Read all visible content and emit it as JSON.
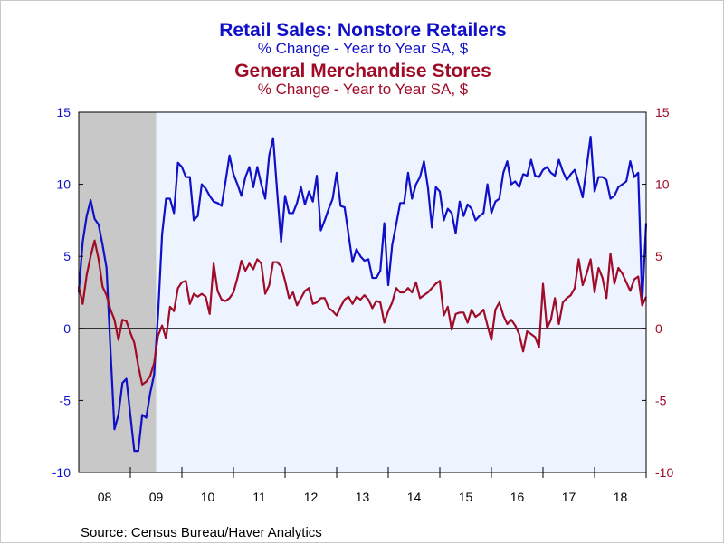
{
  "colors": {
    "series1": "#1010c8",
    "series2": "#a00c28",
    "recession": "#c8c8c8",
    "plot_background": "#eef4ff"
  },
  "titles": {
    "series1_title": "Retail Sales: Nonstore Retailers",
    "series1_subtitle": "% Change - Year to Year    SA, $",
    "series2_title": "General Merchandise Stores",
    "series2_subtitle": "% Change - Year to Year    SA, $"
  },
  "source": "Source:  Census Bureau/Haver Analytics",
  "chart_data": {
    "type": "line",
    "x_tick_labels": [
      "08",
      "09",
      "10",
      "11",
      "12",
      "13",
      "14",
      "15",
      "16",
      "17",
      "18"
    ],
    "y_tick_labels_left": [
      "15",
      "10",
      "5",
      "0",
      "-5",
      "-10"
    ],
    "y_tick_labels_right": [
      "15",
      "10",
      "5",
      "0",
      "-5",
      "-10"
    ],
    "ylim": [
      -10,
      15
    ],
    "xlim": [
      2008.0,
      2019.0
    ],
    "zero_line": true,
    "grid": false,
    "recession_shading": {
      "start": 2008.0,
      "end": 2009.5
    },
    "series": [
      {
        "name": "Retail Sales: Nonstore Retailers",
        "values": [
          2.5,
          6,
          7.8,
          8.9,
          7.6,
          7.2,
          5.8,
          4.2,
          -1.5,
          -7,
          -6,
          -3.8,
          -3.5,
          -6,
          -8.5,
          -8.5,
          -6,
          -6.2,
          -4.5,
          -3.2,
          1,
          6.5,
          9,
          9,
          8,
          11.5,
          11.2,
          10.5,
          10.5,
          7.5,
          7.8,
          10,
          9.7,
          9.2,
          8.8,
          8.7,
          8.5,
          10.2,
          12,
          10.7,
          10,
          9.2,
          10.5,
          11.2,
          9.8,
          11.2,
          10,
          9,
          12,
          13.2,
          9.5,
          6,
          9.2,
          8,
          8,
          8.7,
          9.8,
          8.6,
          9.5,
          8.8,
          10.6,
          6.8,
          7.5,
          8.3,
          9,
          10.8,
          8.5,
          8.4,
          6.5,
          4.6,
          5.5,
          5,
          4.7,
          4.8,
          3.5,
          3.5,
          4,
          7.3,
          3,
          5.8,
          7.2,
          8.7,
          8.7,
          10.8,
          9,
          10,
          10.5,
          11.6,
          9.8,
          7,
          9.8,
          9.5,
          7.5,
          8.3,
          8,
          6.6,
          8.8,
          7.8,
          8.6,
          8.3,
          7.5,
          7.8,
          8,
          10,
          8,
          8.8,
          9,
          10.8,
          11.6,
          10,
          10.2,
          9.8,
          10.7,
          10.6,
          11.7,
          10.6,
          10.5,
          11,
          11.2,
          10.8,
          10.6,
          11.7,
          10.9,
          10.3,
          10.7,
          11,
          10.1,
          9.1,
          11.2,
          13.3,
          9.5,
          10.5,
          10.5,
          10.3,
          9,
          9.2,
          9.8,
          10,
          10.2,
          11.6,
          10.5,
          10.8,
          1.8,
          7.3
        ],
        "color": "#1010c8"
      },
      {
        "name": "General Merchandise Stores",
        "values": [
          2.9,
          1.7,
          3.7,
          5,
          6.1,
          4.8,
          2.9,
          2.3,
          1.3,
          0.6,
          -0.8,
          0.6,
          0.5,
          -0.3,
          -1,
          -2.6,
          -3.9,
          -3.7,
          -3.3,
          -2.4,
          -0.5,
          0.2,
          -0.7,
          1.5,
          1.2,
          2.8,
          3.2,
          3.3,
          1.7,
          2.4,
          2.2,
          2.4,
          2.2,
          1,
          4.5,
          2.6,
          2,
          1.9,
          2.1,
          2.5,
          3.5,
          4.7,
          4,
          4.5,
          4.1,
          4.8,
          4.5,
          2.4,
          3,
          4.6,
          4.6,
          4.3,
          3.3,
          2.1,
          2.5,
          1.6,
          2.1,
          2.6,
          2.8,
          1.7,
          1.8,
          2.1,
          2.1,
          1.4,
          1.2,
          0.9,
          1.5,
          2,
          2.2,
          1.7,
          2.2,
          2,
          2.3,
          2,
          1.4,
          1.9,
          1.8,
          0.4,
          1.2,
          1.8,
          2.8,
          2.5,
          2.5,
          2.8,
          2.5,
          3.2,
          2.1,
          2.3,
          2.5,
          2.8,
          3.1,
          3.3,
          0.9,
          1.5,
          -0.1,
          1,
          1.1,
          1.1,
          0.4,
          1.3,
          0.8,
          1,
          1.3,
          0.2,
          -0.8,
          1.3,
          1.8,
          0.9,
          0.3,
          0.6,
          0.2,
          -0.4,
          -1.6,
          -0.2,
          -0.4,
          -0.6,
          -1.3,
          3.1,
          0,
          0.6,
          2.1,
          0.3,
          1.8,
          2.1,
          2.3,
          2.8,
          4.8,
          3,
          3.8,
          4.8,
          2.5,
          4.2,
          3.5,
          2.1,
          5.2,
          3.1,
          4.2,
          3.8,
          3.2,
          2.6,
          3.4,
          3.6,
          1.6,
          2.2
        ],
        "color": "#a00c28"
      }
    ]
  }
}
